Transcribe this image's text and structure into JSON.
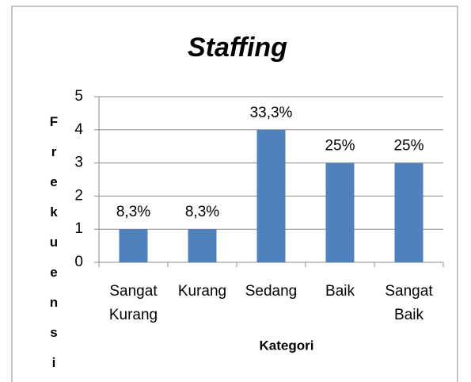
{
  "chart_data": {
    "type": "bar",
    "title": "Staffing",
    "y_label": "Frekuensi",
    "x_label": "Kategori",
    "categories": [
      "Sangat Kurang",
      "Kurang",
      "Sedang",
      "Baik",
      "Sangat Baik"
    ],
    "values": [
      1,
      1,
      4,
      3,
      3
    ],
    "value_labels": [
      "8,3%",
      "8,3%",
      "33,3%",
      "25%",
      "25%"
    ],
    "color": "#4f81bd",
    "ylim": [
      0,
      5
    ],
    "yticks": [
      0,
      1,
      2,
      3,
      4,
      5
    ],
    "grid": true
  }
}
